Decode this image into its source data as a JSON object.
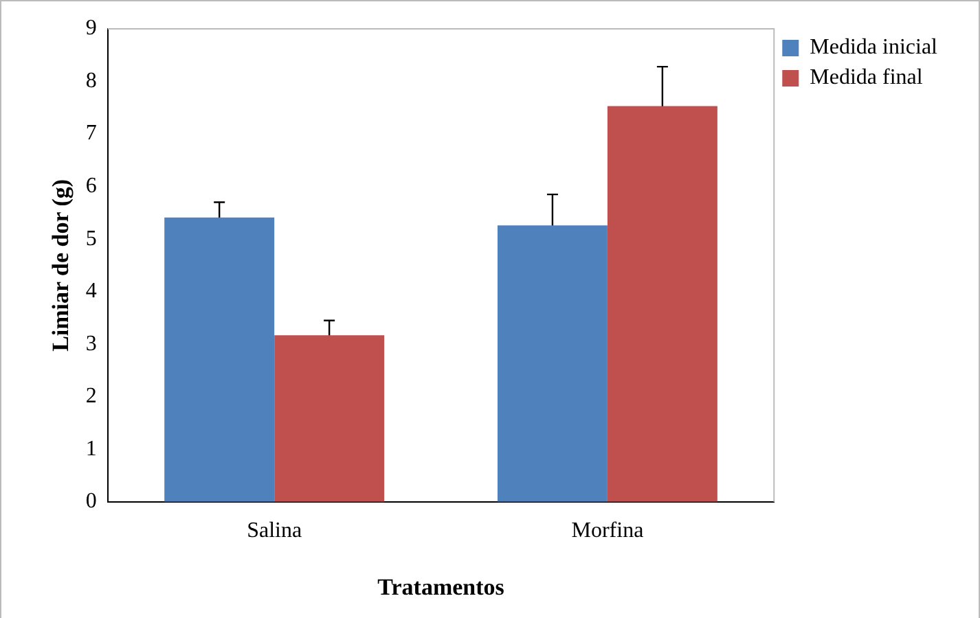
{
  "chart_data": {
    "type": "bar",
    "xlabel": "Tratamentos",
    "ylabel": "Limiar de dor (g)",
    "categories": [
      "Salina",
      "Morfina"
    ],
    "series": [
      {
        "name": "Medida inicial",
        "color": "#4f81bd",
        "values": [
          5.41,
          5.26
        ],
        "errors": [
          0.29,
          0.59
        ]
      },
      {
        "name": "Medida final",
        "color": "#c0504d",
        "values": [
          3.17,
          7.53
        ],
        "errors": [
          0.28,
          0.75
        ]
      }
    ],
    "ylim": [
      0,
      9
    ],
    "yticks": [
      0,
      1,
      2,
      3,
      4,
      5,
      6,
      7,
      8,
      9
    ],
    "grid": false,
    "legend": "top right"
  }
}
